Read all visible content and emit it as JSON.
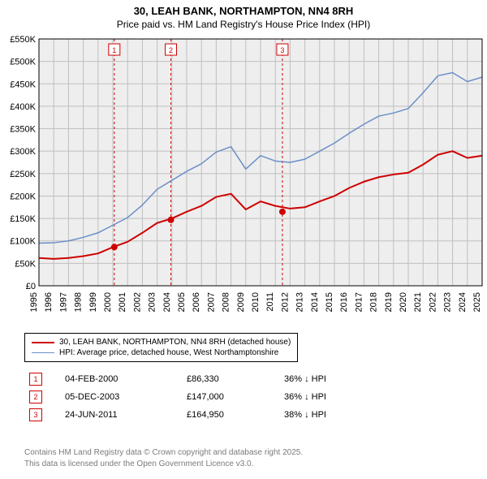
{
  "header": {
    "address": "30, LEAH BANK, NORTHAMPTON, NN4 8RH",
    "subtitle": "Price paid vs. HM Land Registry's House Price Index (HPI)"
  },
  "chart": {
    "type": "line",
    "x": {
      "min": 1995,
      "max": 2025,
      "ticks": [
        1995,
        1996,
        1997,
        1998,
        1999,
        2000,
        2001,
        2002,
        2003,
        2004,
        2005,
        2006,
        2007,
        2008,
        2009,
        2010,
        2011,
        2012,
        2013,
        2014,
        2015,
        2016,
        2017,
        2018,
        2019,
        2020,
        2021,
        2022,
        2023,
        2024,
        2025
      ]
    },
    "y": {
      "min": 0,
      "max": 550000,
      "ticks": [
        0,
        50000,
        100000,
        150000,
        200000,
        250000,
        300000,
        350000,
        400000,
        450000,
        500000,
        550000
      ],
      "labels": [
        "£0",
        "£50K",
        "£100K",
        "£150K",
        "£200K",
        "£250K",
        "£300K",
        "£350K",
        "£400K",
        "£450K",
        "£500K",
        "£550K"
      ]
    },
    "background": "#eeeeee",
    "grid_color": "#bfbfbf",
    "series": [
      {
        "id": "price",
        "label": "30, LEAH BANK, NORTHAMPTON, NN4 8RH (detached house)",
        "color": "#cf0000",
        "width": 2,
        "data": [
          [
            1995,
            62000
          ],
          [
            1996,
            60000
          ],
          [
            1997,
            62000
          ],
          [
            1998,
            66000
          ],
          [
            1999,
            72000
          ],
          [
            2000,
            86000
          ],
          [
            2001,
            98000
          ],
          [
            2002,
            118000
          ],
          [
            2003,
            140000
          ],
          [
            2004,
            150000
          ],
          [
            2005,
            165000
          ],
          [
            2006,
            178000
          ],
          [
            2007,
            198000
          ],
          [
            2008,
            205000
          ],
          [
            2009,
            170000
          ],
          [
            2010,
            188000
          ],
          [
            2011,
            178000
          ],
          [
            2012,
            172000
          ],
          [
            2013,
            175000
          ],
          [
            2014,
            188000
          ],
          [
            2015,
            200000
          ],
          [
            2016,
            218000
          ],
          [
            2017,
            232000
          ],
          [
            2018,
            242000
          ],
          [
            2019,
            248000
          ],
          [
            2020,
            252000
          ],
          [
            2021,
            270000
          ],
          [
            2022,
            292000
          ],
          [
            2023,
            300000
          ],
          [
            2024,
            285000
          ],
          [
            2025,
            290000
          ]
        ]
      },
      {
        "id": "hpi",
        "label": "HPI: Average price, detached house, West Northamptonshire",
        "color": "#6b8fc9",
        "width": 1.5,
        "data": [
          [
            1995,
            95000
          ],
          [
            1996,
            96000
          ],
          [
            1997,
            100000
          ],
          [
            1998,
            108000
          ],
          [
            1999,
            118000
          ],
          [
            2000,
            135000
          ],
          [
            2001,
            152000
          ],
          [
            2002,
            180000
          ],
          [
            2003,
            215000
          ],
          [
            2004,
            235000
          ],
          [
            2005,
            255000
          ],
          [
            2006,
            272000
          ],
          [
            2007,
            298000
          ],
          [
            2008,
            310000
          ],
          [
            2009,
            260000
          ],
          [
            2010,
            290000
          ],
          [
            2011,
            278000
          ],
          [
            2012,
            275000
          ],
          [
            2013,
            282000
          ],
          [
            2014,
            300000
          ],
          [
            2015,
            318000
          ],
          [
            2016,
            340000
          ],
          [
            2017,
            360000
          ],
          [
            2018,
            378000
          ],
          [
            2019,
            385000
          ],
          [
            2020,
            395000
          ],
          [
            2021,
            430000
          ],
          [
            2022,
            468000
          ],
          [
            2023,
            475000
          ],
          [
            2024,
            455000
          ],
          [
            2025,
            465000
          ]
        ]
      }
    ],
    "markers": [
      {
        "n": "1",
        "x": 2000.1,
        "y": 86330,
        "color": "#cf0000"
      },
      {
        "n": "2",
        "x": 2003.93,
        "y": 147000,
        "color": "#cf0000"
      },
      {
        "n": "3",
        "x": 2011.48,
        "y": 164950,
        "color": "#cf0000"
      }
    ]
  },
  "legend": [
    {
      "color": "#cf0000",
      "width": 2,
      "label": "30, LEAH BANK, NORTHAMPTON, NN4 8RH (detached house)"
    },
    {
      "color": "#6b8fc9",
      "width": 1.5,
      "label": "HPI: Average price, detached house, West Northamptonshire"
    }
  ],
  "transactions": [
    {
      "n": "1",
      "date": "04-FEB-2000",
      "price": "£86,330",
      "diff": "36% ↓ HPI",
      "marker_color": "#cf0000"
    },
    {
      "n": "2",
      "date": "05-DEC-2003",
      "price": "£147,000",
      "diff": "36% ↓ HPI",
      "marker_color": "#cf0000"
    },
    {
      "n": "3",
      "date": "24-JUN-2011",
      "price": "£164,950",
      "diff": "38% ↓ HPI",
      "marker_color": "#cf0000"
    }
  ],
  "footer": {
    "line1": "Contains HM Land Registry data © Crown copyright and database right 2025.",
    "line2": "This data is licensed under the Open Government Licence v3.0."
  }
}
